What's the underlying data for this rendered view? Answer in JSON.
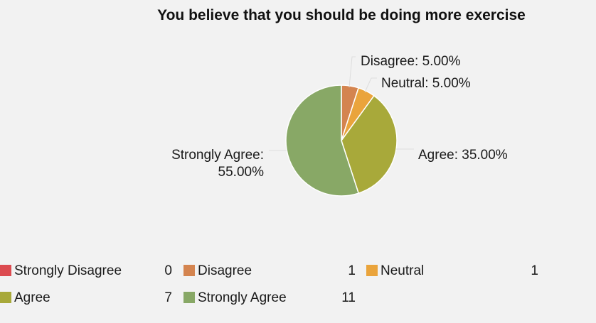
{
  "chart_data": {
    "type": "pie",
    "title": "You believe that you should be doing more exercise",
    "categories": [
      "Strongly Disagree",
      "Disagree",
      "Neutral",
      "Agree",
      "Strongly Agree"
    ],
    "values": [
      0,
      1,
      1,
      7,
      11
    ],
    "percent_labels": [
      "",
      "Disagree: 5.00%",
      "Neutral: 5.00%",
      "Agree: 35.00%",
      "Strongly Agree: 55.00%"
    ],
    "colors": [
      "#dc4b50",
      "#d4844f",
      "#eaa43c",
      "#a8a93a",
      "#88a866"
    ],
    "legend": [
      {
        "label": "Strongly Disagree",
        "count": "0"
      },
      {
        "label": "Disagree",
        "count": "1"
      },
      {
        "label": "Neutral",
        "count": "1"
      },
      {
        "label": "Agree",
        "count": "7"
      },
      {
        "label": "Strongly Agree",
        "count": "11"
      }
    ],
    "legend_placement": "bottom"
  }
}
